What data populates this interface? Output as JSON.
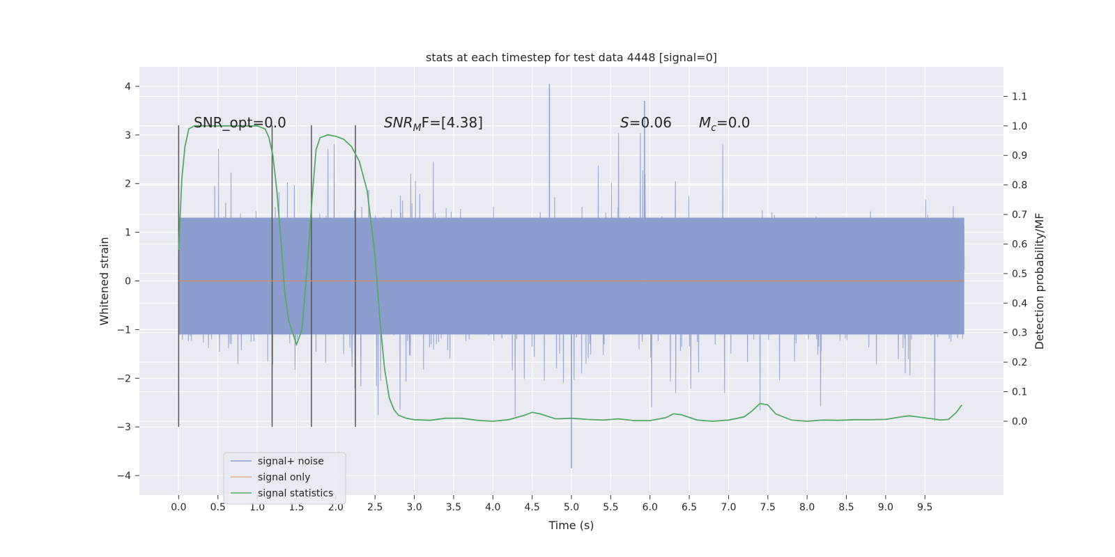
{
  "chart_data": {
    "type": "line",
    "title": "stats at each timestep for test data 4448 [signal=0]",
    "xlabel": "Time (s)",
    "ylabel_left": "Whitened strain",
    "ylabel_right": "Detection probability/MF",
    "xlim": [
      -0.5,
      10.5
    ],
    "ylim_left": [
      -4.4,
      4.4
    ],
    "ylim_right": [
      -0.25,
      1.2
    ],
    "xticks": [
      "0.0",
      "0.5",
      "1.0",
      "1.5",
      "2.0",
      "2.5",
      "3.0",
      "3.5",
      "4.0",
      "4.5",
      "5.0",
      "5.5",
      "6.0",
      "6.5",
      "7.0",
      "7.5",
      "8.0",
      "8.5",
      "9.0",
      "9.5"
    ],
    "yticks_left": [
      "−4",
      "−3",
      "−2",
      "−1",
      "0",
      "1",
      "2",
      "3",
      "4"
    ],
    "yticks_right": [
      "0.0",
      "0.1",
      "0.2",
      "0.3",
      "0.4",
      "0.5",
      "0.6",
      "0.7",
      "0.8",
      "0.9",
      "1.0",
      "1.1"
    ],
    "grid": true,
    "legend_position": "lower-left",
    "colors": {
      "noise": "#8c9ecd",
      "signal": "#dd8452",
      "stats": "#55a868",
      "background": "#eaeaf2",
      "markers": "#555555"
    },
    "annotations": {
      "snr_opt": "SNR_opt=0.0",
      "snr_mf_sym": "SNR",
      "snr_mf_sub": "M",
      "snr_mf_rest": "F=[4.38]",
      "s_sym": "S",
      "s_rest": "=0.06",
      "mc_sym": "M",
      "mc_sub": "c",
      "mc_rest": "=0.0"
    },
    "markers_x": [
      0.0,
      1.19,
      1.69,
      2.25
    ],
    "series": [
      {
        "name": "signal+ noise",
        "t_start": 0.0,
        "t_end": 10.0,
        "band_y": [
          -1.1,
          1.3
        ],
        "y_range": [
          -3.85,
          4.05
        ],
        "description_peaks": [
          [
            4.72,
            4.05
          ],
          [
            5.93,
            3.7
          ],
          [
            5.0,
            -3.85
          ]
        ]
      },
      {
        "name": "signal only",
        "x": [
          0.0,
          10.0
        ],
        "y": [
          0.0,
          0.0
        ]
      },
      {
        "name": "signal statistics",
        "x": [
          0.0,
          0.04,
          0.08,
          0.13,
          0.2,
          0.3,
          0.5,
          0.8,
          1.0,
          1.1,
          1.15,
          1.2,
          1.25,
          1.3,
          1.35,
          1.4,
          1.45,
          1.5,
          1.57,
          1.63,
          1.7,
          1.75,
          1.8,
          1.9,
          2.0,
          2.1,
          2.2,
          2.3,
          2.4,
          2.5,
          2.56,
          2.62,
          2.68,
          2.74,
          2.8,
          2.9,
          3.0,
          3.2,
          3.4,
          3.6,
          3.8,
          4.0,
          4.2,
          4.4,
          4.5,
          4.6,
          4.8,
          5.0,
          5.2,
          5.4,
          5.6,
          5.8,
          6.0,
          6.2,
          6.3,
          6.4,
          6.6,
          6.8,
          7.0,
          7.2,
          7.3,
          7.4,
          7.5,
          7.6,
          7.8,
          8.0,
          8.2,
          8.4,
          8.6,
          8.8,
          9.0,
          9.2,
          9.3,
          9.4,
          9.6,
          9.7,
          9.8,
          9.9,
          9.97
        ],
        "y": [
          0.58,
          0.82,
          0.93,
          0.99,
          1.0,
          1.0,
          1.0,
          1.0,
          1.0,
          0.99,
          0.96,
          0.9,
          0.78,
          0.62,
          0.44,
          0.34,
          0.3,
          0.26,
          0.31,
          0.5,
          0.76,
          0.92,
          0.96,
          0.97,
          0.965,
          0.955,
          0.93,
          0.88,
          0.78,
          0.56,
          0.35,
          0.18,
          0.08,
          0.04,
          0.02,
          0.01,
          0.005,
          0.003,
          0.01,
          0.01,
          0.003,
          0.0,
          0.005,
          0.02,
          0.03,
          0.025,
          0.008,
          0.01,
          0.006,
          0.004,
          0.008,
          0.002,
          0.002,
          0.012,
          0.025,
          0.022,
          0.004,
          0.0,
          0.004,
          0.015,
          0.035,
          0.06,
          0.055,
          0.025,
          0.004,
          0.0,
          0.004,
          0.003,
          0.005,
          0.005,
          0.006,
          0.015,
          0.018,
          0.015,
          0.008,
          0.004,
          0.006,
          0.03,
          0.055
        ]
      }
    ]
  }
}
